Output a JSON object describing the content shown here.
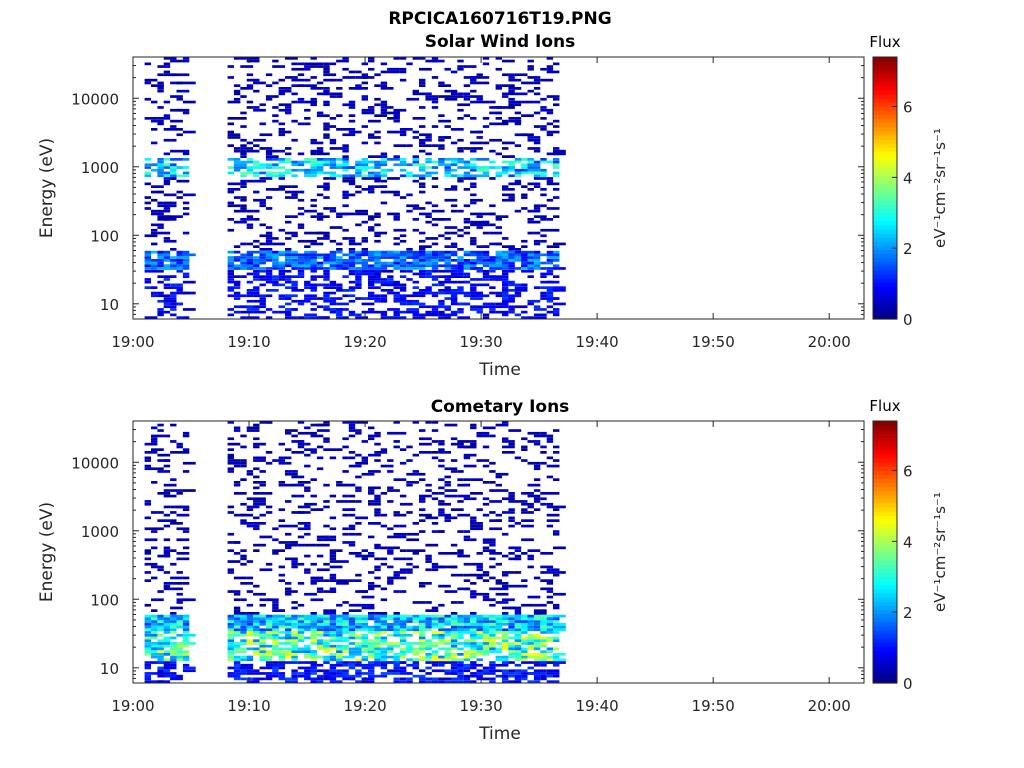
{
  "figure_title": "RPCICA160716T19.PNG",
  "chart_data": [
    {
      "type": "heatmap",
      "title": "Solar Wind Ions",
      "xlabel": "Time",
      "ylabel": "Energy (eV)",
      "y_scale": "log",
      "x_ticks": [
        "19:00",
        "19:10",
        "19:20",
        "19:30",
        "19:40",
        "19:50",
        "20:00"
      ],
      "y_ticks": [
        "10",
        "100",
        "1000",
        "10000"
      ],
      "y_tick_values": [
        10,
        100,
        1000,
        10000
      ],
      "ylim": [
        6,
        40000
      ],
      "xlim_minutes": [
        0,
        63
      ],
      "data_extent_minutes": [
        1,
        36.5
      ],
      "colorbar": {
        "title": "Flux",
        "label": "eV⁻¹cm⁻²sr⁻¹s⁻¹",
        "range": [
          0,
          7.4
        ],
        "ticks": [
          "0",
          "2",
          "4",
          "6"
        ],
        "tick_values": [
          0,
          2,
          4,
          6
        ],
        "colormap": "jet"
      },
      "bands": [
        {
          "e_low": 6,
          "e_high": 30,
          "level": 0.9,
          "density": 0.45
        },
        {
          "e_low": 30,
          "e_high": 60,
          "level": 1.6,
          "density": 0.85
        },
        {
          "e_low": 700,
          "e_high": 1400,
          "level": 2.4,
          "density": 0.55
        },
        {
          "e_low": 60,
          "e_high": 40000,
          "level": 0.4,
          "density": 0.22
        }
      ]
    },
    {
      "type": "heatmap",
      "title": "Cometary Ions",
      "xlabel": "Time",
      "ylabel": "Energy (eV)",
      "y_scale": "log",
      "x_ticks": [
        "19:00",
        "19:10",
        "19:20",
        "19:30",
        "19:40",
        "19:50",
        "20:00"
      ],
      "y_ticks": [
        "10",
        "100",
        "1000",
        "10000"
      ],
      "y_tick_values": [
        10,
        100,
        1000,
        10000
      ],
      "ylim": [
        6,
        40000
      ],
      "xlim_minutes": [
        0,
        63
      ],
      "data_extent_minutes": [
        1,
        36.5
      ],
      "colorbar": {
        "title": "Flux",
        "label": "eV⁻¹cm⁻²sr⁻¹s⁻¹",
        "range": [
          0,
          7.4
        ],
        "ticks": [
          "0",
          "2",
          "4",
          "6"
        ],
        "tick_values": [
          0,
          2,
          4,
          6
        ],
        "colormap": "jet"
      },
      "bands": [
        {
          "e_low": 6,
          "e_high": 12,
          "level": 1.0,
          "density": 0.6
        },
        {
          "e_low": 12,
          "e_high": 35,
          "level": 3.2,
          "density": 0.7
        },
        {
          "e_low": 35,
          "e_high": 60,
          "level": 2.4,
          "density": 0.95
        },
        {
          "e_low": 60,
          "e_high": 40000,
          "level": 0.4,
          "density": 0.2
        }
      ]
    }
  ]
}
